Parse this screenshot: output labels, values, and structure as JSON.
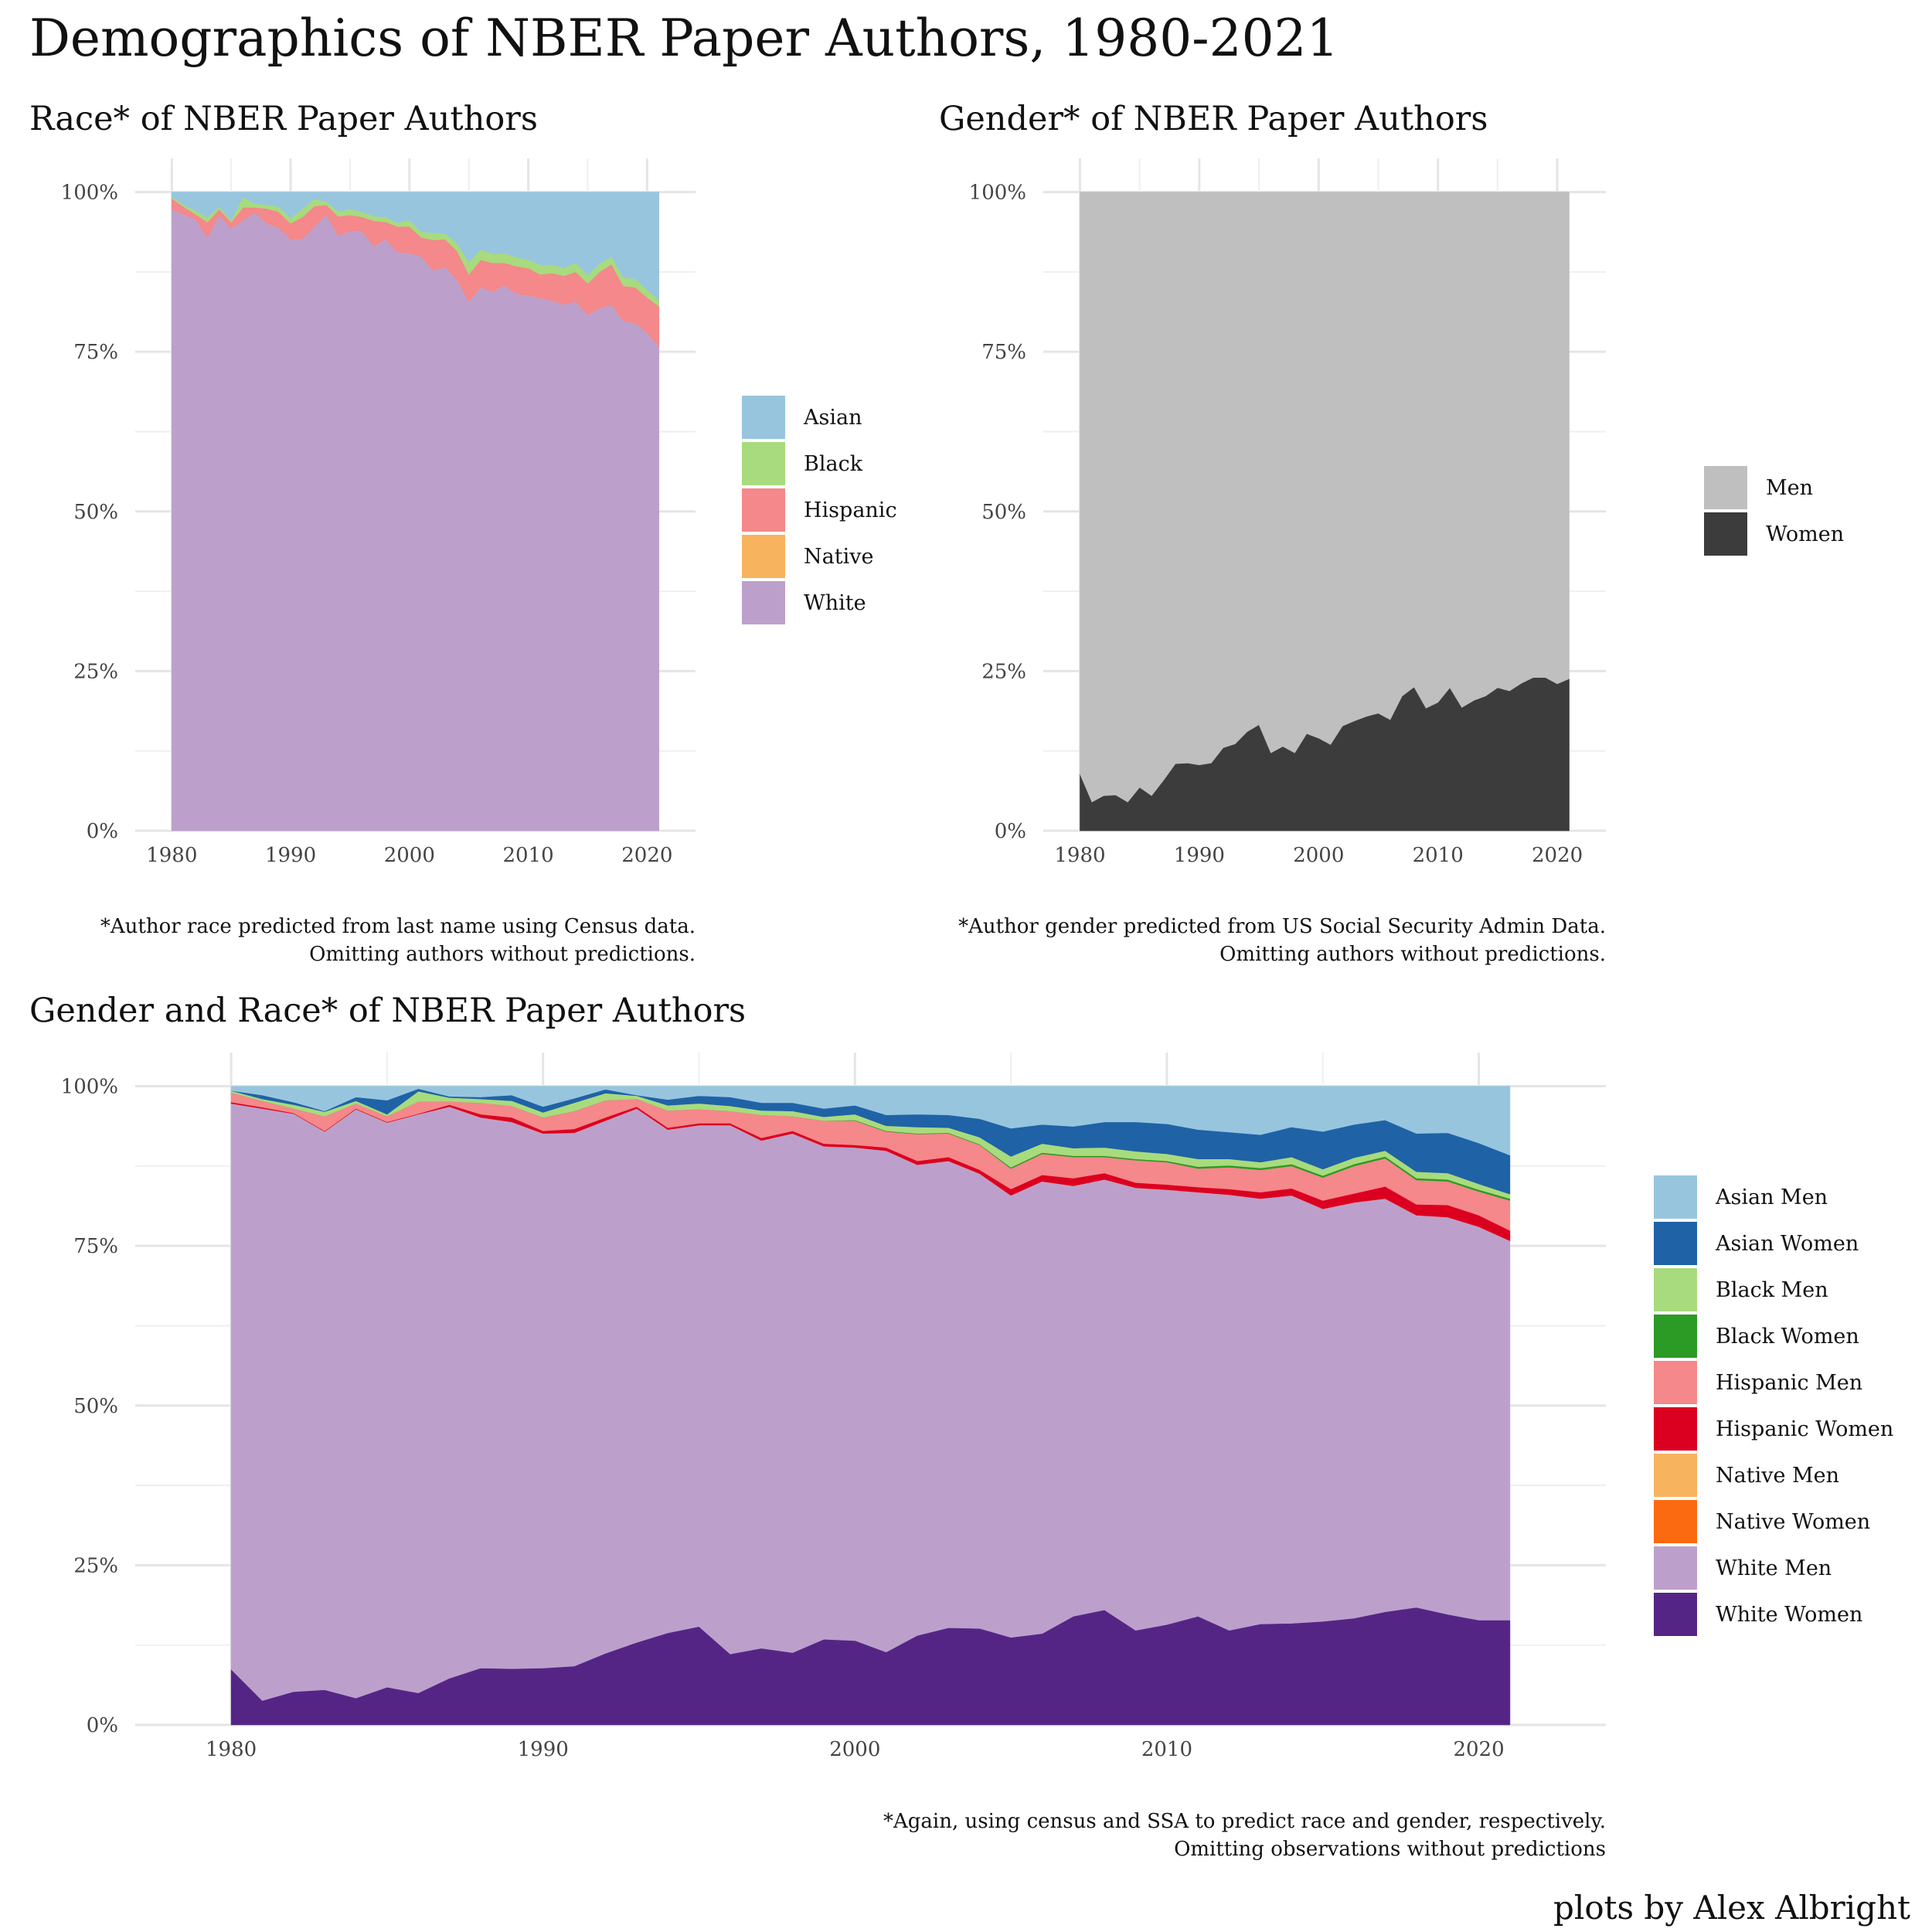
{
  "title": "Demographics of NBER Paper Authors, 1980-2021",
  "credit": "plots by Alex Albright",
  "chart_data": [
    {
      "id": "race",
      "type": "area",
      "title": "Race* of NBER Paper Authors",
      "caption": [
        "*Author race predicted from last name using Census data.",
        "Omitting authors without predictions."
      ],
      "x_ticks": [
        "1980",
        "1990",
        "2000",
        "2010",
        "2020"
      ],
      "y_ticks": [
        "0%",
        "25%",
        "50%",
        "75%",
        "100%"
      ],
      "xlim": [
        1980,
        2021
      ],
      "ylim": [
        0,
        100
      ],
      "stacked": true,
      "grid": true,
      "legend_position": "right",
      "x": [
        1980,
        1981,
        1982,
        1983,
        1984,
        1985,
        1986,
        1987,
        1988,
        1989,
        1990,
        1991,
        1992,
        1993,
        1994,
        1995,
        1996,
        1997,
        1998,
        1999,
        2000,
        2001,
        2002,
        2003,
        2004,
        2005,
        2006,
        2007,
        2008,
        2009,
        2010,
        2011,
        2012,
        2013,
        2014,
        2015,
        2016,
        2017,
        2018,
        2019,
        2020,
        2021
      ],
      "series": [
        {
          "name": "White",
          "color": "#bca0cb",
          "values": [
            97.3,
            96.5,
            95.7,
            92.9,
            96.4,
            94.3,
            95.6,
            96.8,
            95.1,
            94.4,
            92.6,
            92.7,
            94.6,
            96.5,
            93.2,
            93.9,
            93.9,
            91.5,
            92.6,
            90.6,
            90.4,
            89.9,
            87.7,
            88.3,
            86.3,
            82.9,
            85.1,
            84.4,
            85.4,
            84.1,
            83.8,
            83.4,
            83.0,
            82.4,
            82.9,
            80.8,
            81.8,
            82.4,
            79.8,
            79.5,
            78.0,
            75.8
          ]
        },
        {
          "name": "Native",
          "color": "#f8b35f",
          "values": [
            0,
            0,
            0,
            0,
            0,
            0,
            0,
            0,
            0,
            0,
            0,
            0,
            0,
            0,
            0,
            0,
            0,
            0,
            0,
            0,
            0,
            0,
            0,
            0,
            0,
            0,
            0,
            0,
            0,
            0,
            0,
            0,
            0,
            0,
            0,
            0,
            0,
            0,
            0,
            0,
            0,
            0
          ]
        },
        {
          "name": "Hispanic",
          "color": "#f4888a",
          "values": [
            1.7,
            1.2,
            0.8,
            2.4,
            0.9,
            1.0,
            2.0,
            0.8,
            2.3,
            2.5,
            2.5,
            3.4,
            3.2,
            1.5,
            3.0,
            2.5,
            2.2,
            4.0,
            2.7,
            4.0,
            4.2,
            3.0,
            4.8,
            4.3,
            4.5,
            4.2,
            4.3,
            4.5,
            3.5,
            4.3,
            4.3,
            3.7,
            4.3,
            4.5,
            4.6,
            4.9,
            5.7,
            6.3,
            5.5,
            5.6,
            5.5,
            6.3
          ]
        },
        {
          "name": "Black",
          "color": "#a8db7d",
          "values": [
            0.3,
            0.3,
            0.6,
            0.7,
            0.4,
            0.3,
            1.6,
            0.6,
            0.6,
            0.8,
            0.8,
            1.3,
            1.1,
            0.5,
            0.8,
            0.9,
            0.8,
            0.7,
            0.8,
            0.6,
            1.0,
            0.9,
            1.1,
            0.9,
            1.2,
            1.9,
            1.6,
            1.4,
            1.5,
            1.4,
            1.3,
            1.5,
            1.3,
            1.2,
            1.4,
            1.3,
            1.3,
            1.2,
            1.3,
            1.3,
            1.2,
            1.0
          ]
        },
        {
          "name": "Asian",
          "color": "#98c5de",
          "values": [
            0.7,
            2.0,
            2.9,
            4.0,
            2.3,
            4.4,
            0.8,
            1.8,
            2.0,
            2.3,
            4.1,
            2.6,
            1.1,
            1.5,
            3.0,
            2.7,
            3.1,
            3.8,
            3.9,
            4.8,
            4.4,
            6.2,
            6.4,
            6.5,
            8.0,
            11.0,
            9.0,
            9.7,
            9.6,
            10.2,
            10.6,
            11.4,
            11.4,
            11.9,
            11.1,
            13.0,
            11.2,
            10.1,
            13.4,
            13.6,
            15.3,
            16.9
          ]
        }
      ]
    },
    {
      "id": "gender",
      "type": "area",
      "title": "Gender* of NBER Paper Authors",
      "caption": [
        "*Author gender predicted from US Social Security Admin Data.",
        "Omitting authors without predictions."
      ],
      "x_ticks": [
        "1980",
        "1990",
        "2000",
        "2010",
        "2020"
      ],
      "y_ticks": [
        "0%",
        "25%",
        "50%",
        "75%",
        "100%"
      ],
      "xlim": [
        1980,
        2021
      ],
      "ylim": [
        0,
        100
      ],
      "stacked": true,
      "grid": true,
      "legend_position": "right",
      "x": [
        1980,
        1981,
        1982,
        1983,
        1984,
        1985,
        1986,
        1987,
        1988,
        1989,
        1990,
        1991,
        1992,
        1993,
        1994,
        1995,
        1996,
        1997,
        1998,
        1999,
        2000,
        2001,
        2002,
        2003,
        2004,
        2005,
        2006,
        2007,
        2008,
        2009,
        2010,
        2011,
        2012,
        2013,
        2014,
        2015,
        2016,
        2017,
        2018,
        2019,
        2020,
        2021
      ],
      "series": [
        {
          "name": "Women",
          "color": "#3c3c3c",
          "values": [
            8.9,
            4.5,
            5.5,
            5.6,
            4.5,
            6.8,
            5.5,
            7.9,
            10.5,
            10.6,
            10.3,
            10.6,
            13.0,
            13.6,
            15.5,
            16.6,
            12.2,
            13.2,
            12.2,
            15.2,
            14.5,
            13.5,
            16.4,
            17.2,
            17.9,
            18.4,
            17.4,
            21.1,
            22.5,
            19.2,
            20.1,
            22.4,
            19.3,
            20.4,
            21.1,
            22.4,
            21.9,
            23.1,
            24.0,
            24.0,
            23.0,
            23.8
          ]
        },
        {
          "name": "Men",
          "color": "#bfbfbf",
          "values": [
            91.1,
            95.5,
            94.5,
            94.4,
            95.5,
            93.2,
            94.5,
            92.1,
            89.5,
            89.4,
            89.7,
            89.4,
            87.0,
            86.4,
            84.5,
            83.4,
            87.8,
            86.8,
            87.8,
            84.8,
            85.5,
            86.5,
            83.6,
            82.8,
            82.1,
            81.6,
            82.6,
            78.9,
            77.5,
            80.8,
            79.9,
            77.6,
            80.7,
            79.6,
            78.9,
            77.6,
            78.1,
            76.9,
            76.0,
            76.0,
            77.0,
            76.2
          ]
        }
      ]
    },
    {
      "id": "gender_race",
      "type": "area",
      "title": "Gender and Race* of NBER Paper Authors",
      "caption": [
        "*Again, using census and SSA to predict race and gender, respectively.",
        "Omitting observations without predictions"
      ],
      "x_ticks": [
        "1980",
        "1990",
        "2000",
        "2010",
        "2020"
      ],
      "y_ticks": [
        "0%",
        "25%",
        "50%",
        "75%",
        "100%"
      ],
      "xlim": [
        1980,
        2021
      ],
      "ylim": [
        0,
        100
      ],
      "stacked": true,
      "grid": true,
      "legend_position": "right",
      "x": [
        1980,
        1981,
        1982,
        1983,
        1984,
        1985,
        1986,
        1987,
        1988,
        1989,
        1990,
        1991,
        1992,
        1993,
        1994,
        1995,
        1996,
        1997,
        1998,
        1999,
        2000,
        2001,
        2002,
        2003,
        2004,
        2005,
        2006,
        2007,
        2008,
        2009,
        2010,
        2011,
        2012,
        2013,
        2014,
        2015,
        2016,
        2017,
        2018,
        2019,
        2020,
        2021
      ],
      "series": [
        {
          "name": "White Women",
          "color": "#552586",
          "values": [
            8.7,
            3.8,
            5.2,
            5.5,
            4.2,
            5.9,
            5.0,
            7.3,
            8.9,
            8.8,
            8.9,
            9.2,
            11.2,
            12.9,
            14.4,
            15.4,
            11.1,
            12.0,
            11.3,
            13.4,
            13.2,
            11.4,
            14.0,
            15.2,
            15.1,
            13.7,
            14.3,
            17.0,
            18.0,
            14.8,
            15.7,
            17.0,
            14.8,
            15.8,
            15.9,
            16.2,
            16.7,
            17.7,
            18.4,
            17.3,
            16.4,
            16.4
          ]
        },
        {
          "name": "White Men",
          "color": "#bca0cb",
          "values": [
            88.6,
            92.7,
            90.5,
            87.4,
            92.2,
            88.4,
            90.6,
            89.5,
            86.2,
            85.6,
            83.7,
            83.5,
            83.4,
            83.6,
            78.8,
            78.5,
            82.8,
            79.5,
            81.3,
            77.2,
            77.2,
            78.5,
            73.7,
            73.1,
            71.2,
            69.2,
            70.8,
            67.4,
            67.4,
            69.3,
            68.1,
            66.4,
            68.2,
            66.6,
            67.0,
            64.6,
            65.1,
            64.7,
            61.4,
            62.2,
            61.6,
            59.4
          ]
        },
        {
          "name": "Native Women",
          "color": "#fb6a11",
          "values": [
            0,
            0,
            0,
            0,
            0,
            0,
            0,
            0,
            0,
            0,
            0,
            0,
            0,
            0,
            0,
            0,
            0,
            0,
            0,
            0,
            0,
            0,
            0,
            0,
            0,
            0,
            0,
            0,
            0,
            0,
            0,
            0,
            0,
            0,
            0,
            0,
            0,
            0,
            0,
            0,
            0,
            0
          ]
        },
        {
          "name": "Native Men",
          "color": "#f8b35f",
          "values": [
            0,
            0,
            0,
            0,
            0,
            0,
            0,
            0,
            0,
            0,
            0,
            0,
            0,
            0,
            0,
            0,
            0,
            0,
            0,
            0,
            0,
            0,
            0,
            0,
            0,
            0,
            0,
            0,
            0,
            0,
            0,
            0,
            0,
            0,
            0,
            0,
            0,
            0,
            0,
            0,
            0,
            0
          ]
        },
        {
          "name": "Hispanic Women",
          "color": "#dc0020",
          "values": [
            0.2,
            0.2,
            0.1,
            0.1,
            0.1,
            0.1,
            0.1,
            0.3,
            0.5,
            0.7,
            0.4,
            0.6,
            0.5,
            0.3,
            0.3,
            0.3,
            0.3,
            0.4,
            0.4,
            0.4,
            0.4,
            0.5,
            0.6,
            0.6,
            0.6,
            1.0,
            1.0,
            1.2,
            1.0,
            0.8,
            0.8,
            0.8,
            0.9,
            1.0,
            1.1,
            1.3,
            1.4,
            1.9,
            1.7,
            1.9,
            1.8,
            1.6
          ]
        },
        {
          "name": "Hispanic Men",
          "color": "#f4888a",
          "values": [
            1.5,
            1.0,
            0.7,
            2.3,
            0.8,
            0.9,
            1.9,
            0.5,
            1.8,
            1.8,
            2.1,
            2.8,
            2.7,
            1.2,
            2.7,
            2.2,
            1.9,
            3.6,
            2.3,
            3.6,
            3.8,
            2.5,
            4.2,
            3.7,
            3.9,
            3.2,
            3.3,
            3.3,
            2.5,
            3.5,
            3.5,
            2.9,
            3.4,
            3.5,
            3.5,
            3.6,
            4.3,
            4.4,
            3.8,
            3.7,
            3.7,
            4.7
          ]
        },
        {
          "name": "Black Women",
          "color": "#2c9b25",
          "values": [
            0,
            0,
            0,
            0,
            0,
            0,
            0,
            0,
            0,
            0,
            0,
            0,
            0,
            0,
            0,
            0,
            0,
            0,
            0,
            0,
            0.1,
            0.1,
            0.1,
            0.1,
            0.1,
            0.2,
            0.2,
            0.2,
            0.2,
            0.2,
            0.2,
            0.3,
            0.3,
            0.3,
            0.3,
            0.3,
            0.3,
            0.3,
            0.3,
            0.3,
            0.3,
            0.3
          ]
        },
        {
          "name": "Black Men",
          "color": "#a8db7d",
          "values": [
            0.3,
            0.3,
            0.6,
            0.7,
            0.4,
            0.3,
            1.6,
            0.6,
            0.6,
            0.8,
            0.8,
            1.3,
            1.1,
            0.5,
            0.8,
            0.9,
            0.8,
            0.7,
            0.8,
            0.6,
            0.9,
            0.8,
            1.0,
            0.8,
            1.1,
            1.7,
            1.4,
            1.2,
            1.3,
            1.2,
            1.1,
            1.2,
            1.0,
            0.9,
            1.1,
            1.0,
            1.0,
            0.9,
            1.0,
            1.0,
            0.9,
            0.7
          ]
        },
        {
          "name": "Asian Women",
          "color": "#1f62a6",
          "values": [
            0,
            0.6,
            0.4,
            0.1,
            0.6,
            2.2,
            0.4,
            0.2,
            0.3,
            0.9,
            0.9,
            0.7,
            0.6,
            0.1,
            0.9,
            1.2,
            1.4,
            1.2,
            1.3,
            1.3,
            1.4,
            1.7,
            2.0,
            2.0,
            2.9,
            4.4,
            3.0,
            3.4,
            4.0,
            4.6,
            4.7,
            4.6,
            4.2,
            4.3,
            4.7,
            5.9,
            5.2,
            4.8,
            6.0,
            6.3,
            6.4,
            6.1
          ]
        },
        {
          "name": "Asian Men",
          "color": "#98c5de",
          "values": [
            0.7,
            1.4,
            2.5,
            3.9,
            1.7,
            2.2,
            0.4,
            1.6,
            1.7,
            1.4,
            3.2,
            1.9,
            0.5,
            1.4,
            2.1,
            1.5,
            1.7,
            2.6,
            2.6,
            3.5,
            3.0,
            4.5,
            4.4,
            4.5,
            5.1,
            6.6,
            6.0,
            6.3,
            5.6,
            5.6,
            5.9,
            6.8,
            7.2,
            7.6,
            6.4,
            7.1,
            6.0,
            5.3,
            7.4,
            7.3,
            8.9,
            10.8
          ]
        }
      ]
    }
  ]
}
